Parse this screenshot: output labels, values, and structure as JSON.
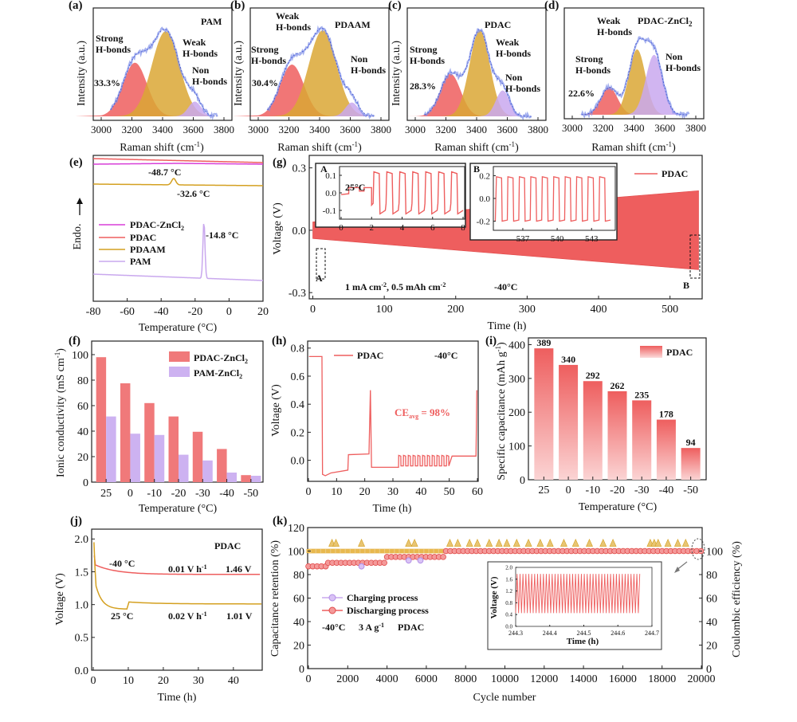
{
  "chart_data": [
    {
      "panel": "(a)",
      "type": "area",
      "title": "PAM",
      "xlabel": "Raman shift (cm-1)",
      "ylabel": "Intensity (a.u.)",
      "xlim": [
        3000,
        3800
      ],
      "xticks": [
        3000,
        3200,
        3400,
        3600,
        3800
      ],
      "labels": {
        "strong": "Strong H-bonds",
        "weak": "Weak H-bonds",
        "non": "Non H-bonds"
      },
      "percent": "33.3%",
      "peaks": [
        {
          "name": "Strong H-bonds",
          "center": 3220,
          "width": 130,
          "height": 0.58,
          "color": "#ee5e5e"
        },
        {
          "name": "Weak H-bonds",
          "center": 3420,
          "width": 150,
          "height": 0.92,
          "color": "#dba735"
        },
        {
          "name": "Non H-bonds",
          "center": 3610,
          "width": 70,
          "height": 0.16,
          "color": "#c9a8ee"
        }
      ]
    },
    {
      "panel": "(b)",
      "type": "area",
      "title": "PDAAM",
      "xlabel": "Raman shift (cm-1)",
      "ylabel": "Intensity (a.u.)",
      "xlim": [
        3000,
        3800
      ],
      "xticks": [
        3000,
        3200,
        3400,
        3600,
        3800
      ],
      "labels": {
        "strong": "Strong H-bonds",
        "weak": "Weak H-bonds",
        "non": "Non H-bonds"
      },
      "percent": "30.4%",
      "peaks": [
        {
          "name": "Strong H-bonds",
          "center": 3220,
          "width": 130,
          "height": 0.56,
          "color": "#ee5e5e"
        },
        {
          "name": "Weak H-bonds",
          "center": 3420,
          "width": 150,
          "height": 0.93,
          "color": "#dba735"
        },
        {
          "name": "Non H-bonds",
          "center": 3610,
          "width": 70,
          "height": 0.15,
          "color": "#c9a8ee"
        }
      ]
    },
    {
      "panel": "(c)",
      "type": "area",
      "title": "PDAC",
      "xlabel": "Raman shift (cm-1)",
      "ylabel": "Intensity (a.u.)",
      "xlim": [
        3000,
        3800
      ],
      "xticks": [
        3000,
        3200,
        3400,
        3600,
        3800
      ],
      "labels": {
        "strong": "Strong H-bonds",
        "weak": "Weak H-bonds",
        "non": "Non H-bonds"
      },
      "percent": "28.3%",
      "peaks": [
        {
          "name": "Strong H-bonds",
          "center": 3230,
          "width": 110,
          "height": 0.46,
          "color": "#ee5e5e"
        },
        {
          "name": "Weak H-bonds",
          "center": 3420,
          "width": 110,
          "height": 0.93,
          "color": "#dba735"
        },
        {
          "name": "Non H-bonds",
          "center": 3570,
          "width": 75,
          "height": 0.28,
          "color": "#c9a8ee"
        }
      ]
    },
    {
      "panel": "(d)",
      "type": "area",
      "title": "PDAC-ZnCl2",
      "xlabel": "Raman shift (cm-1)",
      "ylabel": "",
      "xlim": [
        3000,
        3800
      ],
      "xticks": [
        3000,
        3200,
        3400,
        3600,
        3800
      ],
      "labels": {
        "strong": "Strong H-bonds",
        "weak": "Weak H-bonds",
        "non": "Non H-bonds"
      },
      "percent": "22.6%",
      "peaks": [
        {
          "name": "Strong H-bonds",
          "center": 3240,
          "width": 90,
          "height": 0.3,
          "color": "#ee5e5e"
        },
        {
          "name": "Weak H-bonds",
          "center": 3420,
          "width": 90,
          "height": 0.72,
          "color": "#dba735"
        },
        {
          "name": "Non H-bonds",
          "center": 3530,
          "width": 90,
          "height": 0.66,
          "color": "#c9a8ee"
        }
      ]
    },
    {
      "panel": "(e)",
      "type": "line",
      "xlabel": "Temperature (°C)",
      "ylabel": "Endo.",
      "xlim": [
        -80,
        20
      ],
      "xticks": [
        -80,
        -60,
        -40,
        -20,
        0,
        20
      ],
      "series": [
        {
          "name": "PDAC-ZnCl2",
          "color": "#d83fd8",
          "annotation": ""
        },
        {
          "name": "PDAC",
          "color": "#ee5e5e",
          "annotation": "-48.7 °C"
        },
        {
          "name": "PDAAM",
          "color": "#d4a020",
          "annotation": "-32.6 °C",
          "peak_at": -32.6
        },
        {
          "name": "PAM",
          "color": "#c9a8ee",
          "annotation": "-14.8 °C",
          "peak_at": -14.8
        }
      ]
    },
    {
      "panel": "(g)",
      "type": "line",
      "xlabel": "Time (h)",
      "ylabel": "Voltage (V)",
      "xlim": [
        -5,
        545
      ],
      "ylim": [
        -0.33,
        0.36
      ],
      "xticks": [
        0,
        100,
        200,
        300,
        400,
        500
      ],
      "yticks": [
        -0.3,
        0.0,
        0.3
      ],
      "legend": "PDAC",
      "annotations": [
        "1 mA cm-2, 0.5 mAh cm-2",
        "-40°C",
        "A",
        "B"
      ],
      "envelope_start": 0.04,
      "envelope_end": 0.19,
      "inset_A": {
        "label": "A",
        "text": "25°C",
        "xticks": [
          0,
          2,
          4,
          6,
          8
        ],
        "yticks": [
          0.1,
          0.0,
          -0.1
        ],
        "ylim": [
          -0.15,
          0.15
        ],
        "xlim": [
          0,
          8
        ]
      },
      "inset_B": {
        "label": "B",
        "xticks": [
          537,
          540,
          543
        ],
        "yticks": [
          0.2,
          0.0,
          -0.2
        ],
        "ylim": [
          -0.28,
          0.28
        ],
        "xlim": [
          534.5,
          545
        ]
      }
    },
    {
      "panel": "(f)",
      "type": "bar",
      "xlabel": "Temperature (°C)",
      "ylabel": "Ionic conductivity (mS cm-1)",
      "categories": [
        "25",
        "0",
        "-10",
        "-20",
        "-30",
        "-40",
        "-50"
      ],
      "series": [
        {
          "name": "PDAC-ZnCl2",
          "values": [
            98,
            77.5,
            62,
            51.5,
            39.5,
            26,
            5.5
          ],
          "color": "#f0797a"
        },
        {
          "name": "PAM-ZnCl2",
          "values": [
            51.5,
            38,
            37,
            21.5,
            17,
            7.5,
            5
          ],
          "color": "#cdb2f1"
        }
      ],
      "ylim": [
        0,
        100
      ],
      "yticks": [
        0,
        20,
        40,
        60,
        80,
        100
      ]
    },
    {
      "panel": "(h)",
      "type": "line",
      "xlabel": "Time (h)",
      "ylabel": "Voltage (V)",
      "xlim": [
        0,
        60
      ],
      "ylim": [
        -0.15,
        0.85
      ],
      "xticks": [
        0,
        10,
        20,
        30,
        40,
        50,
        60
      ],
      "yticks": [
        0.0,
        0.2,
        0.4,
        0.6,
        0.8
      ],
      "legend": "PDAC",
      "temperature": "-40°C",
      "ce_label": "CEavg = 98%"
    },
    {
      "panel": "(i)",
      "type": "bar",
      "xlabel": "Temperature (°C)",
      "ylabel": "Specific capacitance (mAh g-1)",
      "categories": [
        "25",
        "0",
        "-10",
        "-20",
        "-30",
        "-40",
        "-50"
      ],
      "values": [
        389,
        340,
        292,
        262,
        235,
        178,
        94
      ],
      "value_labels": [
        "389",
        "340",
        "292",
        "262",
        "235",
        "178",
        "94"
      ],
      "ylim": [
        0,
        420
      ],
      "yticks": [
        0,
        100,
        200,
        300,
        400
      ],
      "legend": "PDAC",
      "color": "#ee5e5e"
    },
    {
      "panel": "(j)",
      "type": "line",
      "xlabel": "Time (h)",
      "ylabel": "Voltage (V)",
      "xlim": [
        0,
        48
      ],
      "ylim": [
        0,
        2.15
      ],
      "xticks": [
        0,
        10,
        20,
        30,
        40
      ],
      "yticks": [
        0.0,
        0.5,
        1.0,
        1.5,
        2.0
      ],
      "legend": "PDAC",
      "series": [
        {
          "name": "-40 °C",
          "rate": "0.01 V h-1",
          "final": "1.46 V",
          "end_value": 1.46,
          "color": "#ee5e5e"
        },
        {
          "name": "25 °C",
          "rate": "0.02 V h-1",
          "final": "1.01 V",
          "end_value": 1.01,
          "color": "#d4a020"
        }
      ]
    },
    {
      "panel": "(k)",
      "type": "scatter",
      "xlabel": "Cycle number",
      "ylabel": "Capacitance retention (%)",
      "y2label": "Coulombic efficiency (%)",
      "xlim": [
        0,
        20000
      ],
      "ylim": [
        0,
        120
      ],
      "y2lim": [
        0,
        120
      ],
      "xticks": [
        0,
        2000,
        4000,
        6000,
        8000,
        10000,
        12000,
        14000,
        16000,
        18000,
        20000
      ],
      "yticks": [
        0,
        20,
        40,
        60,
        80,
        100,
        120
      ],
      "y2ticks": [
        0,
        20,
        40,
        60,
        80,
        100
      ],
      "legend": [
        "Charging process",
        "Discharging process"
      ],
      "conditions": [
        "-40°C",
        "3 A g-1",
        "PDAC"
      ],
      "retention": [
        {
          "from": 0,
          "to": 1000,
          "value": 87
        },
        {
          "from": 1000,
          "to": 4000,
          "value": 90
        },
        {
          "from": 4000,
          "to": 7000,
          "value": 95
        },
        {
          "from": 7000,
          "to": 20000,
          "value": 100
        }
      ],
      "ce_value": 100,
      "inset": {
        "xlabel": "Time (h)",
        "ylabel": "Voltage (V)",
        "xlim": [
          244.3,
          244.7
        ],
        "ylim": [
          0,
          2.0
        ],
        "xticks": [
          244.3,
          244.4,
          244.5,
          244.6,
          244.7
        ],
        "yticks": [
          0.0,
          0.4,
          0.8,
          1.2,
          1.6,
          2.0
        ],
        "voltage_min": 0.45,
        "voltage_max": 1.78,
        "cycles": 42,
        "end_time": 244.66
      }
    }
  ]
}
